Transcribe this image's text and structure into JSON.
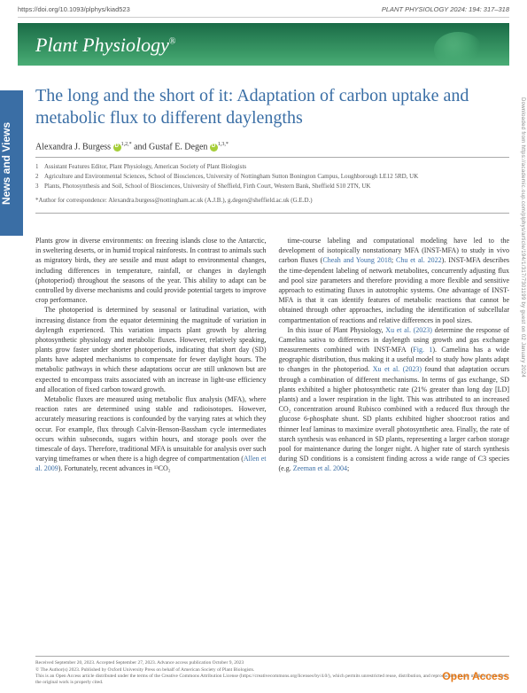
{
  "header": {
    "doi": "https://doi.org/10.1093/plphys/kiad523",
    "citation": "PLANT PHYSIOLOGY 2024: 194: 317–318"
  },
  "banner": {
    "journal": "Plant Physiology",
    "reg": "®"
  },
  "sideTab": "News and Views",
  "title": "The long and the short of it: Adaptation of carbon uptake and metabolic flux to different daylengths",
  "authors": {
    "a1_name": "Alexandra J. Burgess",
    "a1_aff": "1,2,*",
    "and": "and",
    "a2_name": "Gustaf E. Degen",
    "a2_aff": "1,3,*"
  },
  "affiliations": {
    "n1": "1",
    "t1": "Assistant Features Editor, Plant Physiology, American Society of Plant Biologists",
    "n2": "2",
    "t2": "Agriculture and Environmental Sciences, School of Biosciences, University of Nottingham Sutton Bonington Campus, Loughborough LE12 5RD, UK",
    "n3": "3",
    "t3": "Plants, Photosynthesis and Soil, School of Biosciences, University of Sheffield, Firth Court, Western Bank, Sheffield S10 2TN, UK"
  },
  "correspondence": "*Author for correspondence: Alexandra.burgess@nottingham.ac.uk (A.J.B.), g.degen@sheffield.ac.uk (G.E.D.)",
  "body": {
    "p1": "Plants grow in diverse environments: on freezing islands close to the Antarctic, in sweltering deserts, or in humid tropical rainforests. In contrast to animals such as migratory birds, they are sessile and must adapt to environmental changes, including differences in temperature, rainfall, or changes in daylength (photoperiod) throughout the seasons of the year. This ability to adapt can be controlled by diverse mechanisms and could provide potential targets to improve crop performance.",
    "p2": "The photoperiod is determined by seasonal or latitudinal variation, with increasing distance from the equator determining the magnitude of variation in daylength experienced. This variation impacts plant growth by altering photosynthetic physiology and metabolic fluxes. However, relatively speaking, plants grow faster under shorter photoperiods, indicating that short day (SD) plants have adapted mechanisms to compensate for fewer daylight hours. The metabolic pathways in which these adaptations occur are still unknown but are expected to encompass traits associated with an increase in light-use efficiency and allocation of fixed carbon toward growth.",
    "p3a": "Metabolic fluxes are measured using metabolic flux analysis (MFA), where reaction rates are determined using stable and radioisotopes. However, accurately measuring reactions is confounded by the varying rates at which they occur. For example, flux through Calvin-Benson-Bassham cycle intermediates occurs within subseconds, sugars within hours, and storage pools over the timescale of days. Therefore, traditional MFA is unsuitable for analysis over such varying timeframes or when there is a high degree of compartmentation (",
    "p3_ref": "Allen et al. 2009",
    "p3b": "). Fortunately, recent advances in ¹³CO₂",
    "p4a": "time-course labeling and computational modeling have led to the development of isotopically nonstationary MFA (INST-MFA) to study in vivo carbon fluxes (",
    "p4_ref1": "Cheah and Young 2018",
    "p4_semi": "; ",
    "p4_ref2": "Chu et al. 2022",
    "p4b": "). INST-MFA describes the time-dependent labeling of network metabolites, concurrently adjusting flux and pool size parameters and therefore providing a more flexible and sensitive approach to estimating fluxes in autotrophic systems. One advantage of INST-MFA is that it can identify features of metabolic reactions that cannot be obtained through other approaches, including the identification of subcellular compartmentation of reactions and relative differences in pool sizes.",
    "p5a": "In this issue of Plant Physiology, ",
    "p5_ref1": "Xu et al. (2023)",
    "p5b": " determine the response of Camelina sativa to differences in daylength using growth and gas exchange measurements combined with INST-MFA (",
    "p5_ref2": "Fig. 1",
    "p5c": "). Camelina has a wide geographic distribution, thus making it a useful model to study how plants adapt to changes in the photoperiod. ",
    "p5_ref3": "Xu et al. (2023)",
    "p5d": " found that adaptation occurs through a combination of different mechanisms. In terms of gas exchange, SD plants exhibited a higher photosynthetic rate (21% greater than long day [LD] plants) and a lower respiration in the light. This was attributed to an increased CO₂ concentration around Rubisco combined with a reduced flux through the glucose 6-phosphate shunt. SD plants exhibited higher shoot:root ratios and thinner leaf laminas to maximize overall photosynthetic area. Finally, the rate of starch synthesis was enhanced in SD plants, representing a larger carbon storage pool for maintenance during the longer night. A higher rate of starch synthesis during SD conditions is a consistent finding across a wide range of C3 species (e.g. ",
    "p5_ref4": "Zeeman et al. 2004",
    "p5e": ";"
  },
  "footer": {
    "received": "Received September 20, 2023. Accepted September 27, 2023. Advance access publication October 9, 2023",
    "copyright": "© The Author(s) 2023. Published by Oxford University Press on behalf of American Society of Plant Biologists.",
    "license": "This is an Open Access article distributed under the terms of the Creative Commons Attribution License (https://creativecommons.org/licenses/by/4.0/), which permits unrestricted reuse, distribution, and reproduction in any medium, provided the original work is properly cited.",
    "openAccess": "Open Access"
  },
  "sideNote": "Downloaded from https://academic.oup.com/plphys/article/194/1/317/7301199 by guest on 02 January 2024"
}
